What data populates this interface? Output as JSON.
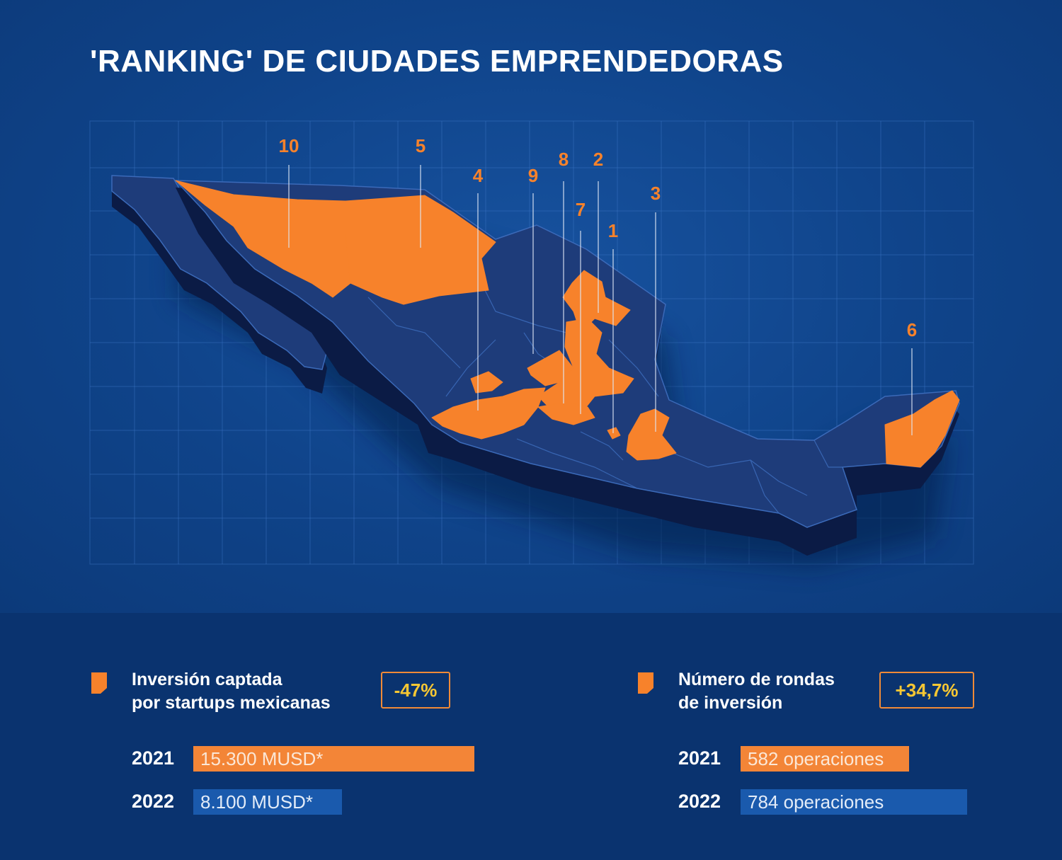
{
  "title": "'RANKING' DE CIUDADES EMPRENDEDORAS",
  "colors": {
    "background": "#0f3f86",
    "land": "#1e3c7a",
    "highlight": "#f7822b",
    "badge_text": "#f7c733",
    "bar_2021": "#f38537",
    "bar_2022": "#1a5aad"
  },
  "map": {
    "region": "México",
    "ranking_labels": [
      "1",
      "2",
      "3",
      "4",
      "5",
      "6",
      "7",
      "8",
      "9",
      "10"
    ]
  },
  "stats": {
    "investment": {
      "title_line1": "Inversión captada",
      "title_line2": "por startups mexicanas",
      "change": "-47%",
      "rows": [
        {
          "year": "2021",
          "label": "15.300 MUSD*",
          "value": 15300
        },
        {
          "year": "2022",
          "label": "8.100 MUSD*",
          "value": 8100
        }
      ]
    },
    "rounds": {
      "title_line1": "Número de rondas",
      "title_line2": "de inversión",
      "change": "+34,7%",
      "rows": [
        {
          "year": "2021",
          "label": "582 operaciones",
          "value": 582
        },
        {
          "year": "2022",
          "label": "784 operaciones",
          "value": 784
        }
      ]
    }
  }
}
